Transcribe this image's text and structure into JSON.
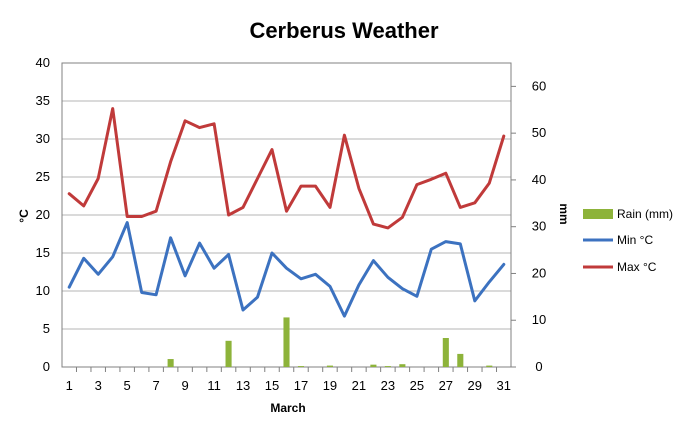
{
  "chart_data": {
    "type": "line",
    "title": "Cerberus Weather",
    "xlabel": "March",
    "ylabel": "°C",
    "y2label": "mm",
    "x": [
      1,
      2,
      3,
      4,
      5,
      6,
      7,
      8,
      9,
      10,
      11,
      12,
      13,
      14,
      15,
      16,
      17,
      18,
      19,
      20,
      21,
      22,
      23,
      24,
      25,
      26,
      27,
      28,
      29,
      30,
      31
    ],
    "x_tick_labels": [
      "1",
      "3",
      "5",
      "7",
      "9",
      "11",
      "13",
      "15",
      "17",
      "19",
      "21",
      "23",
      "25",
      "27",
      "29",
      "31"
    ],
    "ylim": [
      0,
      40
    ],
    "y_ticks": [
      0,
      5,
      10,
      15,
      20,
      25,
      30,
      35,
      40
    ],
    "y2lim": [
      0,
      65
    ],
    "y2_ticks": [
      0,
      10,
      20,
      30,
      40,
      50,
      60
    ],
    "grid": true,
    "legend_position": "right",
    "series": [
      {
        "name": "Rain (mm)",
        "kind": "bar",
        "axis": "right",
        "color": "#8db33a",
        "values": [
          0,
          0,
          0,
          0,
          0,
          0,
          0,
          1.7,
          0,
          0,
          0,
          5.6,
          0,
          0,
          0,
          10.6,
          0.2,
          0,
          0.3,
          0,
          0,
          0.5,
          0.2,
          0.6,
          0,
          0,
          6.2,
          2.8,
          0,
          0.3,
          0
        ]
      },
      {
        "name": "Min °C",
        "kind": "line",
        "axis": "left",
        "color": "#3c72c0",
        "values": [
          10.5,
          14.3,
          12.2,
          14.5,
          19.0,
          9.8,
          9.5,
          17.0,
          12.0,
          16.3,
          13.0,
          14.8,
          7.5,
          9.2,
          15.0,
          13.0,
          11.6,
          12.2,
          10.6,
          6.7,
          10.8,
          14.0,
          11.8,
          10.3,
          9.3,
          15.5,
          16.5,
          16.2,
          8.7,
          11.2,
          13.5
        ]
      },
      {
        "name": "Max °C",
        "kind": "line",
        "axis": "left",
        "color": "#c03a3a",
        "values": [
          22.8,
          21.2,
          24.8,
          34.0,
          19.8,
          19.8,
          20.5,
          27.0,
          32.4,
          31.5,
          32.0,
          20.0,
          21.0,
          24.8,
          28.6,
          20.5,
          23.8,
          23.8,
          21.0,
          30.5,
          23.5,
          18.8,
          18.3,
          19.7,
          24.0,
          24.7,
          25.5,
          21.0,
          21.6,
          24.2,
          30.4
        ]
      }
    ]
  }
}
